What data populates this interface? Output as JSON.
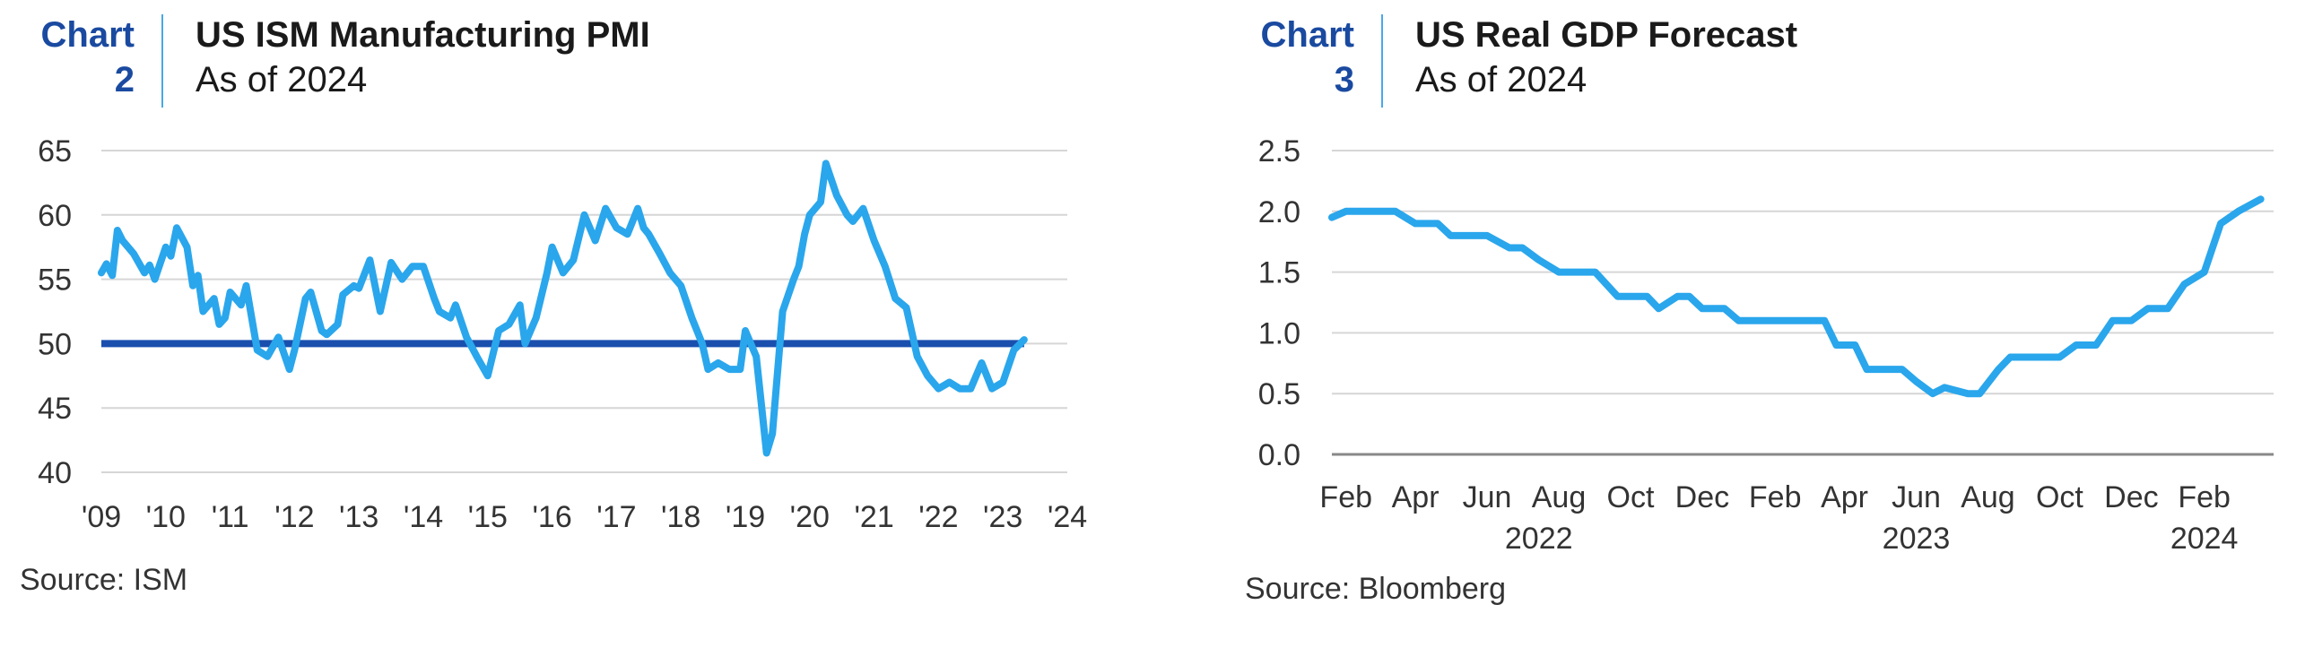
{
  "charts": [
    {
      "label": "Chart",
      "number": "2",
      "title": "US ISM Manufacturing PMI",
      "subtitle": "As of 2024",
      "source": "Source: ISM"
    },
    {
      "label": "Chart",
      "number": "3",
      "title": "US Real GDP Forecast",
      "subtitle": "As of 2024",
      "source": "Source: Bloomberg"
    }
  ],
  "colors": {
    "accent": "#1a4aa0",
    "line": "#2aa6ec",
    "reference": "#1a4fae",
    "grid": "#d6d6d6",
    "divider": "#4aa8e8"
  },
  "chart_data": [
    {
      "type": "line",
      "title": "US ISM Manufacturing PMI",
      "subtitle": "As of 2024",
      "xlabel": "",
      "ylabel": "",
      "ylim": [
        40,
        65
      ],
      "yticks": [
        40,
        45,
        50,
        55,
        60,
        65
      ],
      "xlim": [
        2009,
        2024
      ],
      "xticks": [
        {
          "value": 2009,
          "label": "'09"
        },
        {
          "value": 2010,
          "label": "'10"
        },
        {
          "value": 2011,
          "label": "'11"
        },
        {
          "value": 2012,
          "label": "'12"
        },
        {
          "value": 2013,
          "label": "'13"
        },
        {
          "value": 2014,
          "label": "'14"
        },
        {
          "value": 2015,
          "label": "'15"
        },
        {
          "value": 2016,
          "label": "'16"
        },
        {
          "value": 2017,
          "label": "'17"
        },
        {
          "value": 2018,
          "label": "'18"
        },
        {
          "value": 2019,
          "label": "'19"
        },
        {
          "value": 2020,
          "label": "'20"
        },
        {
          "value": 2021,
          "label": "'21"
        },
        {
          "value": 2022,
          "label": "'22"
        },
        {
          "value": 2023,
          "label": "'23"
        },
        {
          "value": 2024,
          "label": "'24"
        }
      ],
      "grid": true,
      "reference_line": 50,
      "series": [
        {
          "x": [
            2009.0,
            2009.08,
            2009.17,
            2009.25,
            2009.33,
            2009.5,
            2009.67,
            2009.75,
            2009.83,
            2010.0,
            2010.08,
            2010.17,
            2010.33,
            2010.42,
            2010.5,
            2010.58,
            2010.75,
            2010.83,
            2010.92,
            2011.0,
            2011.17,
            2011.25,
            2011.42,
            2011.58,
            2011.75,
            2011.92,
            2012.0,
            2012.17,
            2012.25,
            2012.42,
            2012.5,
            2012.67,
            2012.75,
            2012.92,
            2013.0,
            2013.17,
            2013.33,
            2013.5,
            2013.67,
            2013.83,
            2014.0,
            2014.17,
            2014.25,
            2014.42,
            2014.5,
            2014.67,
            2014.83,
            2015.0,
            2015.17,
            2015.33,
            2015.5,
            2015.58,
            2015.75,
            2015.92,
            2016.0,
            2016.17,
            2016.33,
            2016.5,
            2016.67,
            2016.83,
            2017.0,
            2017.17,
            2017.33,
            2017.42,
            2017.5,
            2017.67,
            2017.83,
            2018.0,
            2018.17,
            2018.33,
            2018.42,
            2018.58,
            2018.75,
            2018.92,
            2019.0,
            2019.17,
            2019.33,
            2019.42,
            2019.58,
            2019.75,
            2019.83,
            2019.92,
            2020.0,
            2020.17,
            2020.25,
            2020.42,
            2020.58,
            2020.67,
            2020.83,
            2021.0,
            2021.17,
            2021.33,
            2021.5,
            2021.67,
            2021.83,
            2022.0,
            2022.17,
            2022.33,
            2022.5,
            2022.67,
            2022.83,
            2023.0,
            2023.17,
            2023.33
          ],
          "values": [
            55.5,
            56.2,
            55.3,
            58.8,
            58.0,
            57.0,
            55.5,
            56.1,
            55.0,
            57.5,
            56.8,
            59.0,
            57.5,
            54.5,
            55.3,
            52.5,
            53.5,
            51.5,
            52.0,
            54.0,
            53.0,
            54.5,
            49.5,
            49.0,
            50.5,
            48.0,
            49.5,
            53.5,
            54.0,
            51.0,
            50.7,
            51.5,
            53.8,
            54.5,
            54.3,
            56.5,
            52.5,
            56.3,
            55.0,
            56.0,
            56.0,
            53.5,
            52.5,
            52.0,
            53.0,
            50.5,
            49.0,
            47.5,
            51.0,
            51.5,
            53.0,
            50.0,
            52.0,
            55.5,
            57.5,
            55.5,
            56.5,
            60.0,
            58.0,
            60.5,
            59.0,
            58.5,
            60.5,
            59.0,
            58.5,
            57.0,
            55.5,
            54.5,
            52.0,
            50.0,
            48.0,
            48.5,
            48.0,
            48.0,
            51.0,
            49.0,
            41.5,
            43.0,
            52.5,
            55.0,
            56.0,
            58.5,
            60.0,
            61.0,
            64.0,
            61.5,
            60.0,
            59.5,
            60.5,
            58.0,
            56.0,
            53.5,
            52.8,
            49.0,
            47.5,
            46.5,
            47.0,
            46.5,
            46.5,
            48.5,
            46.5,
            47.0,
            49.5,
            50.3
          ]
        }
      ]
    },
    {
      "type": "line",
      "title": "US Real GDP Forecast",
      "subtitle": "As of 2024",
      "xlabel": "",
      "ylabel": "",
      "ylim": [
        0.0,
        2.5
      ],
      "yticks": [
        "0.0",
        "0.5",
        "1.0",
        "1.5",
        "2.0",
        "2.5"
      ],
      "xlim": [
        "2022-01-20",
        "2024-03-31"
      ],
      "xticks": [
        {
          "date": "2022-02-01",
          "label": "Feb"
        },
        {
          "date": "2022-04-01",
          "label": "Apr"
        },
        {
          "date": "2022-06-01",
          "label": "Jun"
        },
        {
          "date": "2022-08-01",
          "label": "Aug"
        },
        {
          "date": "2022-10-01",
          "label": "Oct"
        },
        {
          "date": "2022-12-01",
          "label": "Dec"
        },
        {
          "date": "2023-02-01",
          "label": "Feb"
        },
        {
          "date": "2023-04-01",
          "label": "Apr"
        },
        {
          "date": "2023-06-01",
          "label": "Jun"
        },
        {
          "date": "2023-08-01",
          "label": "Aug"
        },
        {
          "date": "2023-10-01",
          "label": "Oct"
        },
        {
          "date": "2023-12-01",
          "label": "Dec"
        },
        {
          "date": "2024-02-01",
          "label": "Feb"
        }
      ],
      "year_labels": [
        {
          "date": "2022-07-15",
          "label": "2022"
        },
        {
          "date": "2023-06-01",
          "label": "2023"
        },
        {
          "date": "2024-02-01",
          "label": "2024"
        }
      ],
      "grid": true,
      "series": [
        {
          "x": [
            "2022-01-20",
            "2022-02-01",
            "2022-02-20",
            "2022-03-01",
            "2022-03-15",
            "2022-04-01",
            "2022-04-20",
            "2022-05-01",
            "2022-06-01",
            "2022-06-20",
            "2022-07-01",
            "2022-07-15",
            "2022-08-01",
            "2022-08-20",
            "2022-09-01",
            "2022-09-20",
            "2022-10-01",
            "2022-10-15",
            "2022-10-25",
            "2022-11-10",
            "2022-11-20",
            "2022-12-01",
            "2022-12-20",
            "2023-01-01",
            "2023-02-01",
            "2023-03-15",
            "2023-03-25",
            "2023-04-10",
            "2023-04-20",
            "2023-05-20",
            "2023-06-01",
            "2023-06-15",
            "2023-06-25",
            "2023-07-15",
            "2023-07-25",
            "2023-08-10",
            "2023-08-20",
            "2023-09-01",
            "2023-09-15",
            "2023-10-01",
            "2023-10-15",
            "2023-11-01",
            "2023-11-15",
            "2023-12-01",
            "2023-12-15",
            "2024-01-01",
            "2024-01-15",
            "2024-02-01",
            "2024-02-15",
            "2024-03-01",
            "2024-03-20"
          ],
          "values": [
            1.95,
            2.0,
            2.0,
            2.0,
            2.0,
            1.9,
            1.9,
            1.8,
            1.8,
            1.7,
            1.7,
            1.6,
            1.5,
            1.5,
            1.5,
            1.3,
            1.3,
            1.3,
            1.2,
            1.3,
            1.3,
            1.2,
            1.2,
            1.1,
            1.1,
            1.1,
            0.9,
            0.9,
            0.7,
            0.7,
            0.6,
            0.5,
            0.55,
            0.5,
            0.5,
            0.7,
            0.8,
            0.8,
            0.8,
            0.8,
            0.9,
            0.9,
            1.1,
            1.1,
            1.2,
            1.2,
            1.4,
            1.5,
            1.9,
            2.0,
            2.1
          ]
        }
      ]
    }
  ]
}
